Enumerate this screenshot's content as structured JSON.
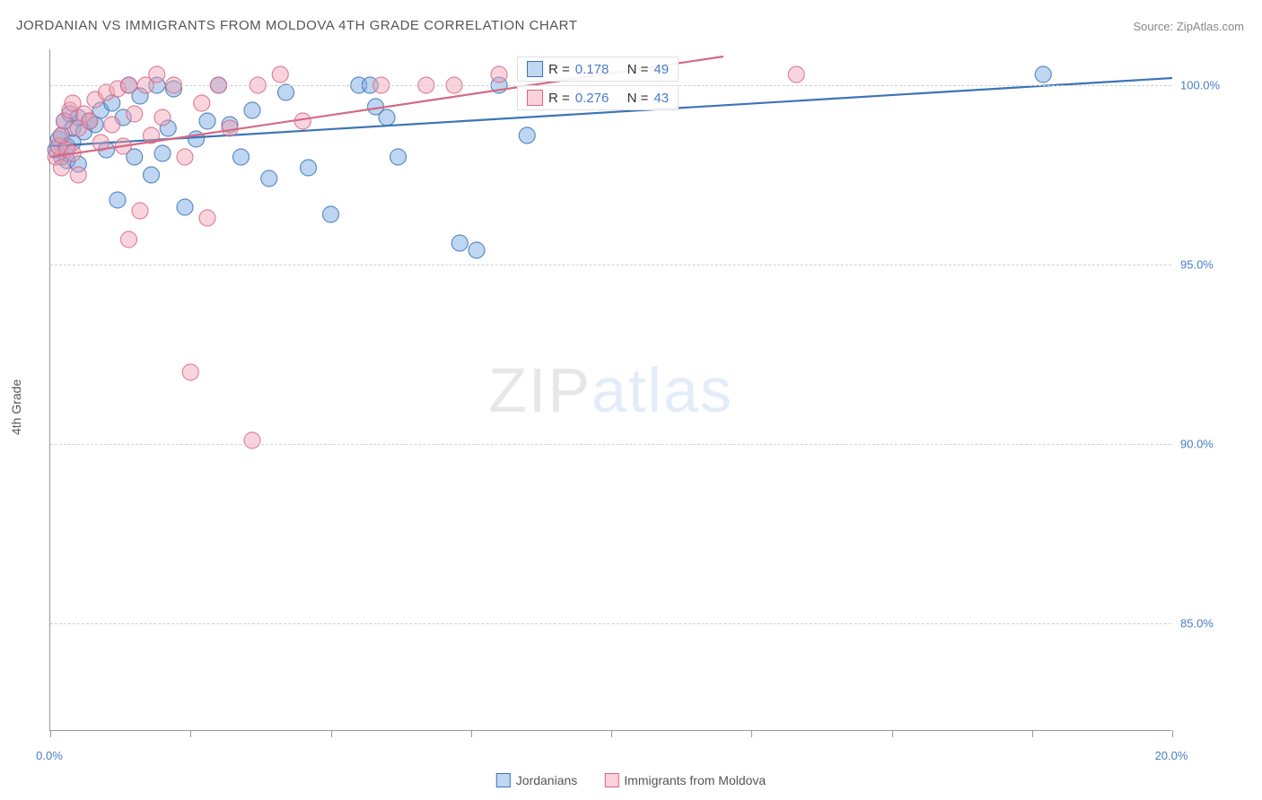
{
  "title": "JORDANIAN VS IMMIGRANTS FROM MOLDOVA 4TH GRADE CORRELATION CHART",
  "source": "Source: ZipAtlas.com",
  "y_axis_title": "4th Grade",
  "watermark": {
    "part1": "ZIP",
    "part2": "atlas"
  },
  "chart": {
    "type": "scatter",
    "background_color": "#ffffff",
    "grid_color": "#d0d0d0",
    "axis_color": "#999999",
    "label_color": "#4a7bc8",
    "title_color": "#555555",
    "title_fontsize": 15,
    "label_fontsize": 13,
    "xlim": [
      0,
      20
    ],
    "ylim": [
      82,
      101
    ],
    "x_ticks": [
      0,
      2.5,
      5,
      7.5,
      10,
      12.5,
      15,
      17.5,
      20
    ],
    "x_tick_labels": {
      "0": "0.0%",
      "20": "20.0%"
    },
    "y_ticks": [
      85,
      90,
      95,
      100
    ],
    "y_tick_labels": {
      "85": "85.0%",
      "90": "90.0%",
      "95": "95.0%",
      "100": "100.0%"
    },
    "marker_radius": 9,
    "marker_opacity": 0.45,
    "marker_stroke_width": 1.2,
    "trend_line_width": 2.2
  },
  "series": [
    {
      "name": "Jordanians",
      "label": "Jordanians",
      "fill_color": "#6fa3e0",
      "stroke_color": "#3d73b8",
      "swatch_fill": "#bfd7f2",
      "swatch_stroke": "#3d73b8",
      "R": "0.178",
      "N": "49",
      "trend": {
        "x1": 0,
        "y1": 98.3,
        "x2": 20,
        "y2": 100.2
      },
      "points": [
        [
          0.1,
          98.2
        ],
        [
          0.15,
          98.5
        ],
        [
          0.2,
          98.0
        ],
        [
          0.2,
          98.6
        ],
        [
          0.25,
          99.0
        ],
        [
          0.3,
          98.3
        ],
        [
          0.3,
          97.9
        ],
        [
          0.35,
          99.2
        ],
        [
          0.4,
          98.4
        ],
        [
          0.4,
          98.8
        ],
        [
          0.5,
          99.1
        ],
        [
          0.5,
          97.8
        ],
        [
          0.6,
          98.7
        ],
        [
          0.7,
          99.0
        ],
        [
          0.8,
          98.9
        ],
        [
          0.9,
          99.3
        ],
        [
          1.0,
          98.2
        ],
        [
          1.1,
          99.5
        ],
        [
          1.2,
          96.8
        ],
        [
          1.3,
          99.1
        ],
        [
          1.4,
          100.0
        ],
        [
          1.5,
          98.0
        ],
        [
          1.6,
          99.7
        ],
        [
          1.8,
          97.5
        ],
        [
          1.9,
          100.0
        ],
        [
          2.0,
          98.1
        ],
        [
          2.1,
          98.8
        ],
        [
          2.2,
          99.9
        ],
        [
          2.4,
          96.6
        ],
        [
          2.6,
          98.5
        ],
        [
          2.8,
          99.0
        ],
        [
          3.0,
          100.0
        ],
        [
          3.2,
          98.9
        ],
        [
          3.4,
          98.0
        ],
        [
          3.6,
          99.3
        ],
        [
          3.9,
          97.4
        ],
        [
          4.2,
          99.8
        ],
        [
          4.6,
          97.7
        ],
        [
          5.0,
          96.4
        ],
        [
          5.5,
          100.0
        ],
        [
          5.7,
          100.0
        ],
        [
          5.8,
          99.4
        ],
        [
          6.0,
          99.1
        ],
        [
          6.2,
          98.0
        ],
        [
          7.3,
          95.6
        ],
        [
          7.6,
          95.4
        ],
        [
          8.0,
          100.0
        ],
        [
          8.5,
          98.6
        ],
        [
          17.7,
          100.3
        ]
      ]
    },
    {
      "name": "Immigrants from Moldova",
      "label": "Immigrants from Moldova",
      "fill_color": "#f2a0b3",
      "stroke_color": "#d46a85",
      "swatch_fill": "#f9d2db",
      "swatch_stroke": "#d46a85",
      "R": "0.276",
      "N": "43",
      "trend": {
        "x1": 0,
        "y1": 98.0,
        "x2": 12,
        "y2": 100.8
      },
      "points": [
        [
          0.1,
          98.0
        ],
        [
          0.15,
          98.3
        ],
        [
          0.2,
          98.6
        ],
        [
          0.2,
          97.7
        ],
        [
          0.25,
          99.0
        ],
        [
          0.3,
          98.2
        ],
        [
          0.35,
          99.3
        ],
        [
          0.4,
          98.1
        ],
        [
          0.4,
          99.5
        ],
        [
          0.5,
          98.8
        ],
        [
          0.5,
          97.5
        ],
        [
          0.6,
          99.2
        ],
        [
          0.7,
          99.0
        ],
        [
          0.8,
          99.6
        ],
        [
          0.9,
          98.4
        ],
        [
          1.0,
          99.8
        ],
        [
          1.1,
          98.9
        ],
        [
          1.2,
          99.9
        ],
        [
          1.3,
          98.3
        ],
        [
          1.4,
          100.0
        ],
        [
          1.5,
          99.2
        ],
        [
          1.6,
          96.5
        ],
        [
          1.7,
          100.0
        ],
        [
          1.8,
          98.6
        ],
        [
          1.9,
          100.3
        ],
        [
          2.0,
          99.1
        ],
        [
          2.2,
          100.0
        ],
        [
          2.4,
          98.0
        ],
        [
          2.5,
          92.0
        ],
        [
          2.7,
          99.5
        ],
        [
          2.8,
          96.3
        ],
        [
          3.0,
          100.0
        ],
        [
          3.2,
          98.8
        ],
        [
          3.6,
          90.1
        ],
        [
          3.7,
          100.0
        ],
        [
          4.1,
          100.3
        ],
        [
          4.5,
          99.0
        ],
        [
          5.9,
          100.0
        ],
        [
          6.7,
          100.0
        ],
        [
          7.2,
          100.0
        ],
        [
          8.0,
          100.3
        ],
        [
          13.3,
          100.3
        ],
        [
          1.4,
          95.7
        ]
      ]
    }
  ],
  "stat_box_labels": {
    "R": "R =",
    "N": "N ="
  }
}
